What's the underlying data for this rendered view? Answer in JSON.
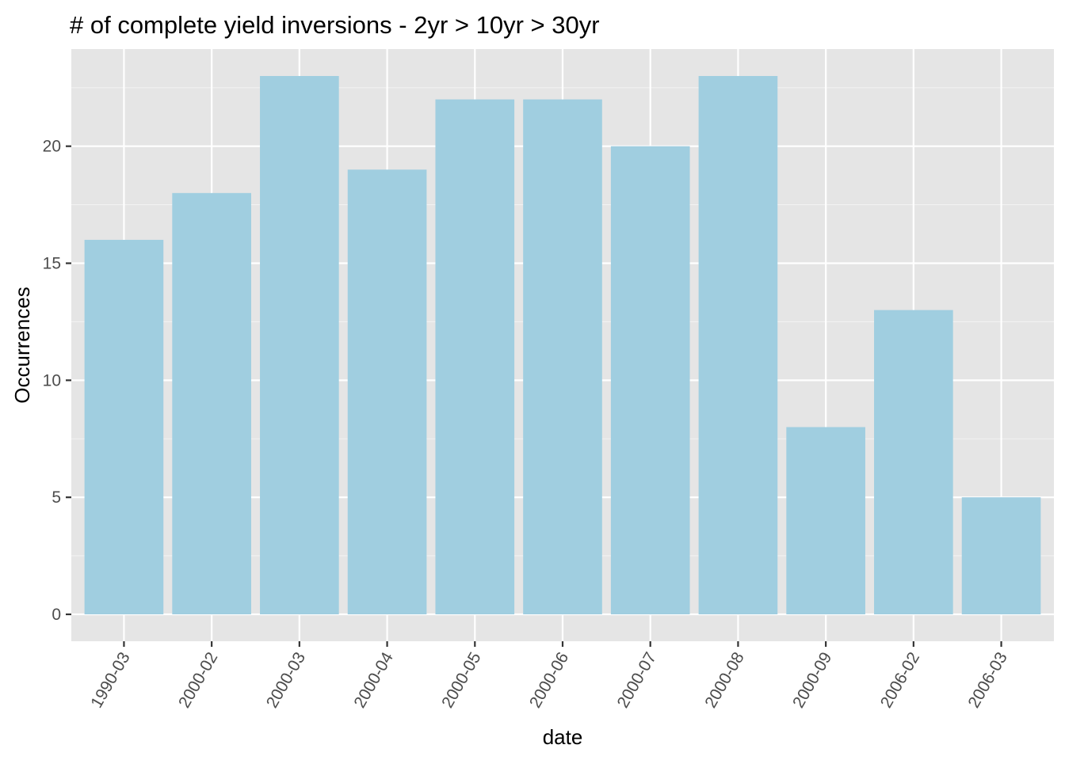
{
  "chart_data": {
    "type": "bar",
    "title": "# of complete yield inversions - 2yr > 10yr > 30yr",
    "xlabel": "date",
    "ylabel": "Occurrences",
    "categories": [
      "1990-03",
      "2000-02",
      "2000-03",
      "2000-04",
      "2000-05",
      "2000-06",
      "2000-07",
      "2000-08",
      "2000-09",
      "2006-02",
      "2006-03"
    ],
    "values": [
      16,
      18,
      23,
      19,
      22,
      22,
      20,
      23,
      8,
      13,
      5
    ],
    "yticks": [
      0,
      5,
      10,
      15,
      20
    ],
    "ylim": [
      -1.15,
      24.15
    ],
    "grid": true,
    "colors": {
      "bar": "#a0cee0",
      "panel": "#e5e5e5",
      "grid_major": "#ffffff",
      "grid_minor": "#f2f2f2",
      "tick": "#333333"
    }
  }
}
